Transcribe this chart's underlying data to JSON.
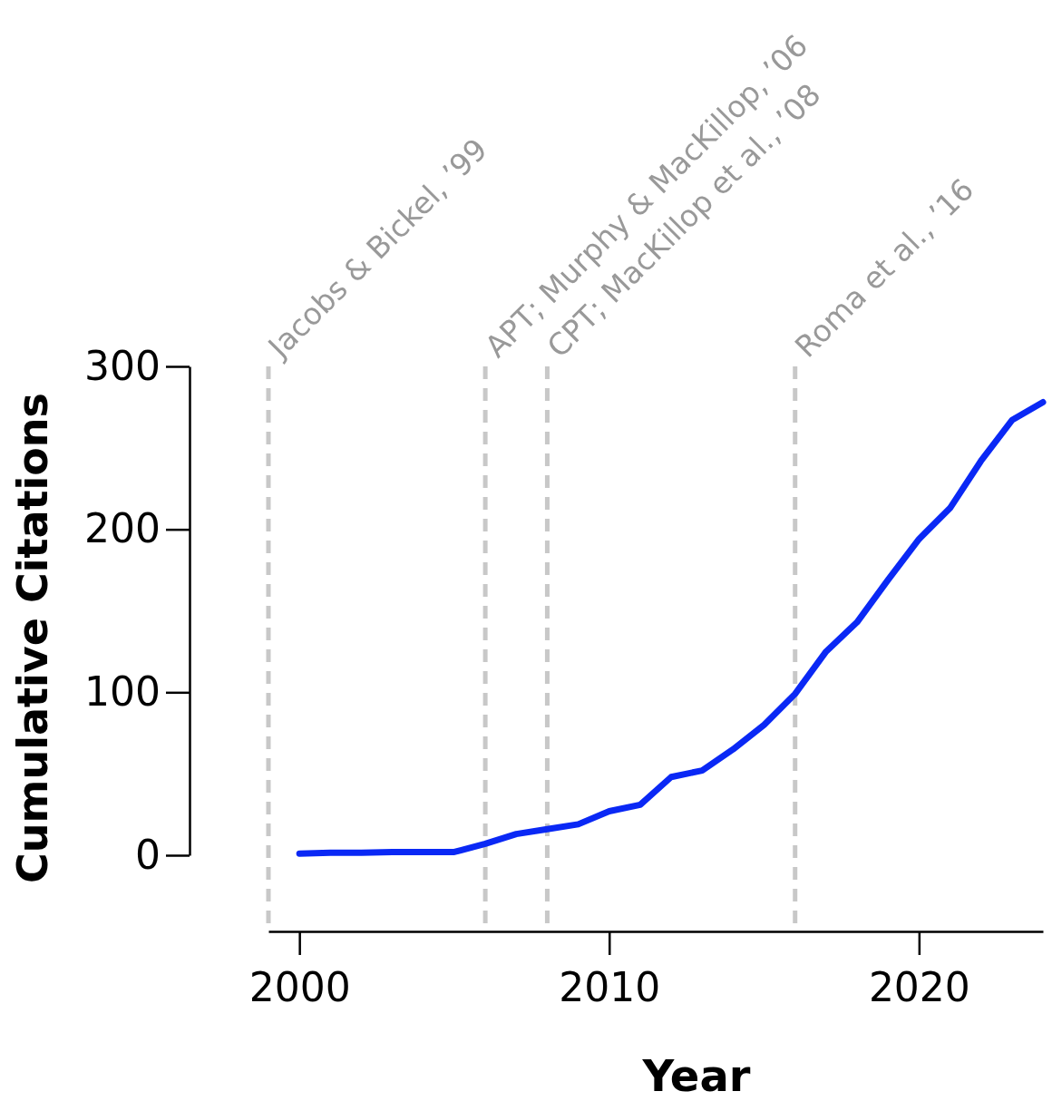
{
  "chart_data": {
    "type": "line",
    "xlabel": "Year",
    "ylabel": "Cumulative Citations",
    "x": [
      2000,
      2001,
      2002,
      2003,
      2004,
      2005,
      2006,
      2007,
      2008,
      2009,
      2010,
      2011,
      2012,
      2013,
      2014,
      2015,
      2016,
      2017,
      2018,
      2019,
      2020,
      2021,
      2022,
      2023,
      2024
    ],
    "series": [
      {
        "color": "#0a28f5",
        "values": [
          1,
          1.5,
          1.5,
          2,
          2,
          2,
          7,
          13,
          16,
          19,
          27,
          31,
          48,
          52,
          65,
          80,
          99,
          125,
          143,
          169,
          194,
          213,
          242,
          267,
          278
        ]
      }
    ],
    "xlim": [
      1999,
      2024
    ],
    "xticks": [
      2000,
      2010,
      2020
    ],
    "ylim": [
      0,
      300
    ],
    "yticks": [
      0,
      100,
      200,
      300
    ],
    "ref_lines": [
      {
        "axis": "x",
        "value": 1999,
        "label": "Jacobs & Bickel, ’99",
        "color": "#c8c8c8",
        "line_style": "dashed"
      },
      {
        "axis": "x",
        "value": 2006,
        "label": "APT; Murphy & MacKillop, ’06",
        "color": "#c8c8c8",
        "line_style": "dashed"
      },
      {
        "axis": "x",
        "value": 2008,
        "label": "CPT; MacKillop et al., ’08",
        "color": "#c8c8c8",
        "line_style": "dashed"
      },
      {
        "axis": "x",
        "value": 2016,
        "label": "Roma et al., ’16",
        "color": "#c8c8c8",
        "line_style": "dashed"
      }
    ],
    "grid": false,
    "marker": "none",
    "line_style": "solid"
  }
}
